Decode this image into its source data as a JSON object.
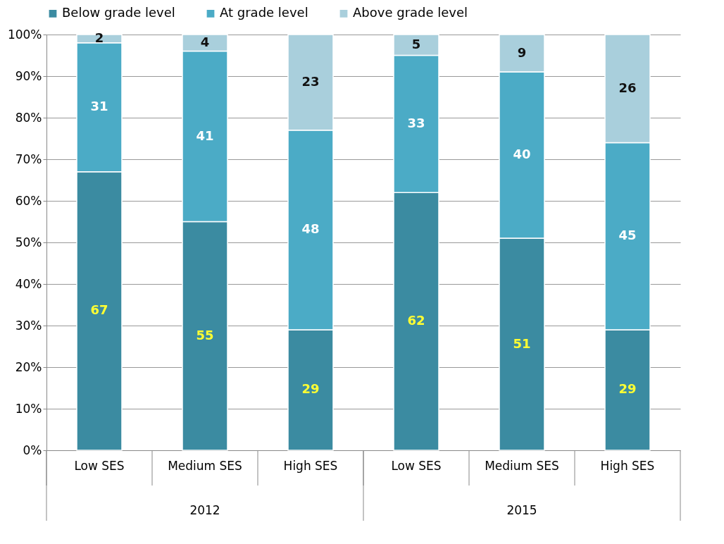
{
  "chart_data": {
    "type": "bar",
    "stacked": true,
    "categories": [
      "Low SES",
      "Medium SES",
      "High SES",
      "Low SES",
      "Medium SES",
      "High SES"
    ],
    "series": [
      {
        "name": "Below grade level",
        "color": "#3b8ba1",
        "values": [
          67,
          55,
          29,
          62,
          51,
          29
        ]
      },
      {
        "name": "At grade level",
        "color": "#4babc6",
        "values": [
          31,
          41,
          48,
          33,
          40,
          45
        ]
      },
      {
        "name": "Above grade level",
        "color": "#a9cfdc",
        "values": [
          2,
          4,
          23,
          5,
          9,
          26
        ]
      }
    ],
    "annotations": [
      "2012",
      "2015"
    ],
    "ylim": [
      0,
      100
    ],
    "yticks": [
      {
        "value": 0,
        "label": "0%"
      },
      {
        "value": 10,
        "label": "10%"
      },
      {
        "value": 20,
        "label": "20%"
      },
      {
        "value": 30,
        "label": "30%"
      },
      {
        "value": 40,
        "label": "40%"
      },
      {
        "value": 50,
        "label": "50%"
      },
      {
        "value": 60,
        "label": "60%"
      },
      {
        "value": 70,
        "label": "70%"
      },
      {
        "value": 80,
        "label": "80%"
      },
      {
        "value": 90,
        "label": "90%"
      },
      {
        "value": 100,
        "label": "100%"
      }
    ],
    "grid": "y",
    "legend": "top",
    "data_labels": true
  }
}
